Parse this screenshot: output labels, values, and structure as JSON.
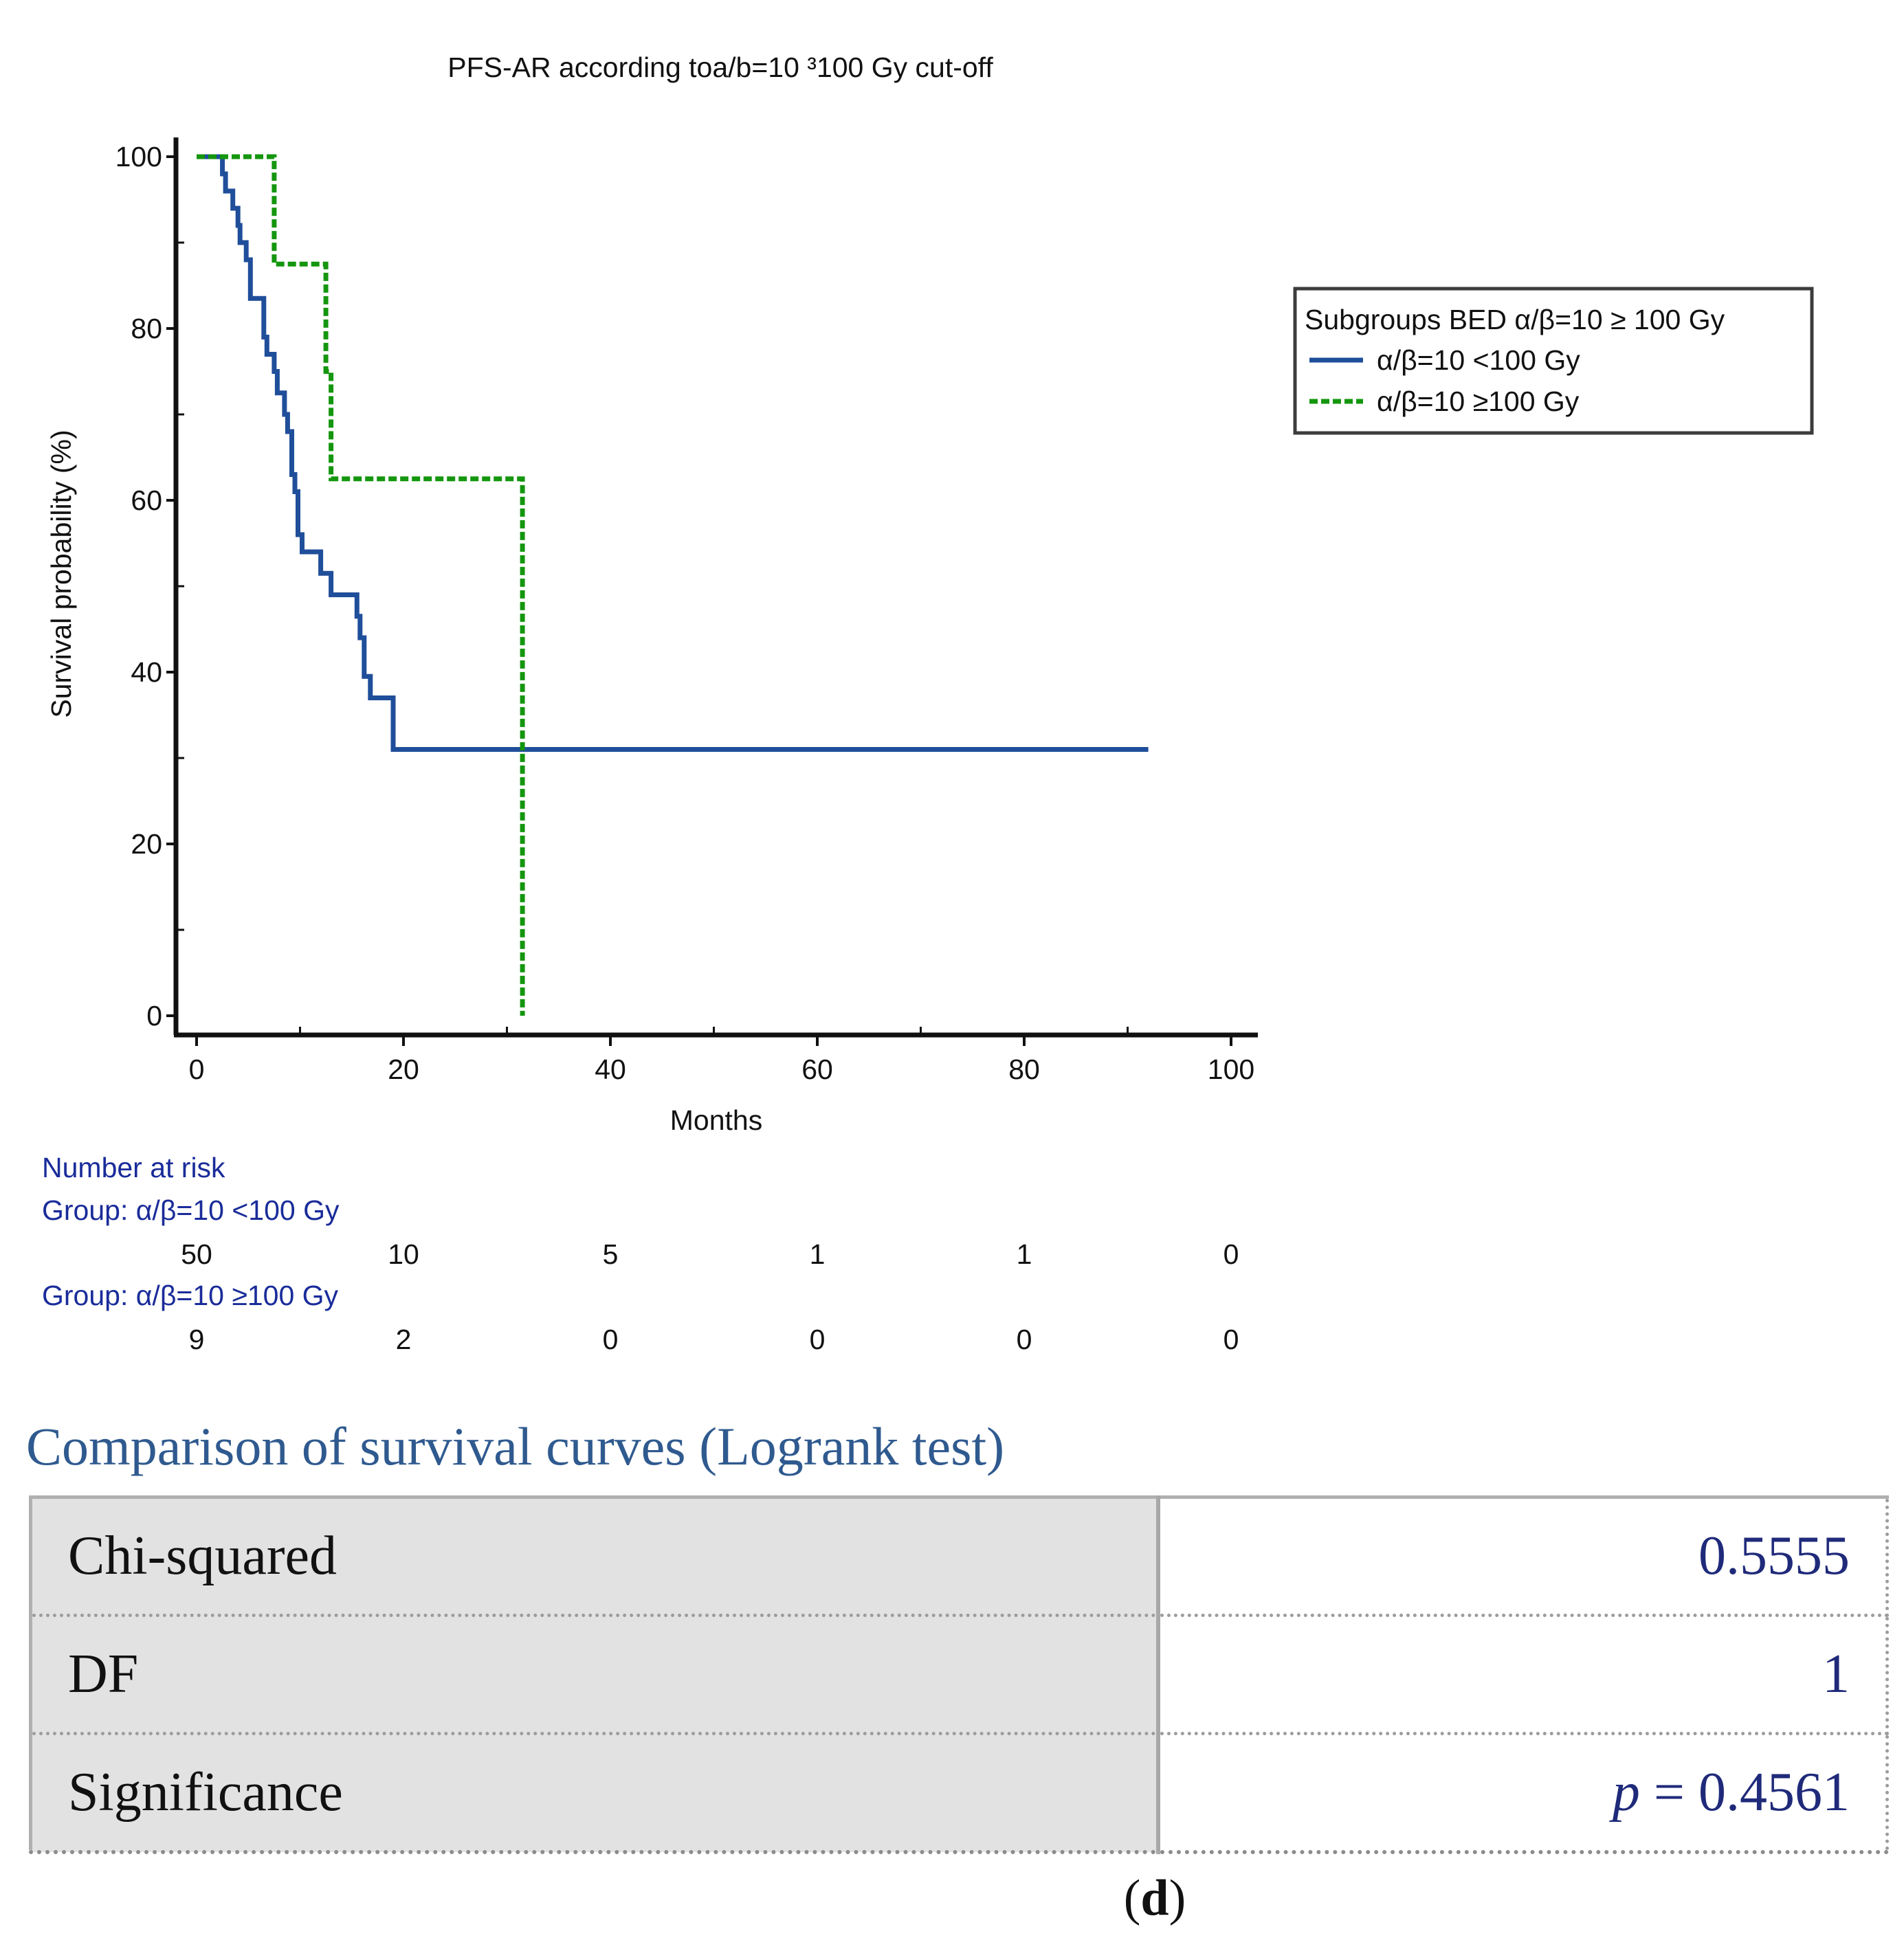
{
  "chart_data": {
    "type": "line",
    "subtype": "kaplan-meier",
    "title": "PFS-AR according toa/b=10 ³100 Gy cut-off",
    "xlabel": "Months",
    "ylabel": "Survival probability (%)",
    "xlim": [
      0,
      100
    ],
    "ylim": [
      0,
      100
    ],
    "xticks": [
      0,
      20,
      40,
      60,
      80,
      100
    ],
    "yticks": [
      0,
      20,
      40,
      60,
      80,
      100
    ],
    "legend": {
      "title": "Subgroups BED α/β=10 ≥ 100 Gy",
      "position": "right",
      "entries": [
        "α/β=10 <100 Gy",
        "α/β=10 ≥100 Gy"
      ]
    },
    "series": [
      {
        "name": "α/β=10 <100 Gy",
        "color": "#1f4e9a",
        "dash": "solid",
        "points": [
          [
            0,
            100
          ],
          [
            2.5,
            100
          ],
          [
            2.5,
            98
          ],
          [
            2.8,
            98
          ],
          [
            2.8,
            96
          ],
          [
            3.5,
            96
          ],
          [
            3.5,
            94
          ],
          [
            4,
            94
          ],
          [
            4,
            92
          ],
          [
            4.2,
            92
          ],
          [
            4.2,
            90
          ],
          [
            4.8,
            90
          ],
          [
            4.8,
            88
          ],
          [
            5.2,
            88
          ],
          [
            5.2,
            83.5
          ],
          [
            6.5,
            83.5
          ],
          [
            6.5,
            79
          ],
          [
            6.8,
            79
          ],
          [
            6.8,
            77
          ],
          [
            7.5,
            77
          ],
          [
            7.5,
            75
          ],
          [
            7.8,
            75
          ],
          [
            7.8,
            72.5
          ],
          [
            8.5,
            72.5
          ],
          [
            8.5,
            70
          ],
          [
            8.8,
            70
          ],
          [
            8.8,
            68
          ],
          [
            9.2,
            68
          ],
          [
            9.2,
            63
          ],
          [
            9.5,
            63
          ],
          [
            9.5,
            61
          ],
          [
            9.8,
            61
          ],
          [
            9.8,
            56
          ],
          [
            10.2,
            56
          ],
          [
            10.2,
            54
          ],
          [
            12,
            54
          ],
          [
            12,
            51.5
          ],
          [
            13,
            51.5
          ],
          [
            13,
            49
          ],
          [
            15.5,
            49
          ],
          [
            15.5,
            46.5
          ],
          [
            15.8,
            46.5
          ],
          [
            15.8,
            44
          ],
          [
            16.2,
            44
          ],
          [
            16.2,
            39.5
          ],
          [
            16.8,
            39.5
          ],
          [
            16.8,
            37
          ],
          [
            19,
            37
          ],
          [
            19,
            31
          ],
          [
            92,
            31
          ]
        ]
      },
      {
        "name": "α/β=10 ≥100 Gy",
        "color": "#14960e",
        "dash": "dashed",
        "points": [
          [
            0,
            100
          ],
          [
            7.5,
            100
          ],
          [
            7.5,
            87.5
          ],
          [
            12.5,
            87.5
          ],
          [
            12.5,
            75
          ],
          [
            13,
            75
          ],
          [
            13,
            62.5
          ],
          [
            31.5,
            62.5
          ],
          [
            31.5,
            0
          ]
        ]
      }
    ],
    "number_at_risk": {
      "title": "Number at risk",
      "times": [
        0,
        20,
        40,
        60,
        80,
        100
      ],
      "groups": [
        {
          "label": "Group: α/β=10 <100 Gy",
          "values": [
            "50",
            "10",
            "5",
            "1",
            "1",
            "0"
          ]
        },
        {
          "label": "Group: α/β=10 ≥100 Gy",
          "values": [
            "9",
            "2",
            "0",
            "0",
            "0",
            "0"
          ]
        }
      ]
    }
  },
  "stats": {
    "title": "Comparison of survival curves (Logrank test)",
    "rows": [
      {
        "label": "Chi-squared",
        "prefix": "",
        "value": "0.5555"
      },
      {
        "label": "DF",
        "prefix": "",
        "value": "1"
      },
      {
        "label": "Significance",
        "prefix": "p",
        "value": " = 0.4561"
      }
    ]
  },
  "caption": {
    "open": "(",
    "letter": "d",
    "close": ")"
  },
  "colors": {
    "risk_text": "#1a2c9a",
    "stats_title": "#2f5a8f",
    "stats_value": "#1f2a7a"
  }
}
